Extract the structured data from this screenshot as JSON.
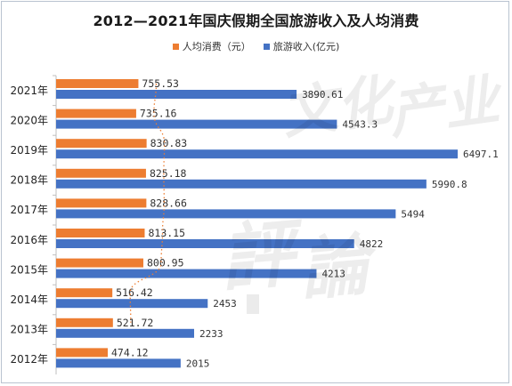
{
  "chart_data": {
    "type": "bar",
    "orientation": "horizontal",
    "title": "2012—2021年国庆假期全国旅游收入及人均消费",
    "categories": [
      "2021年",
      "2020年",
      "2019年",
      "2018年",
      "2017年",
      "2016年",
      "2015年",
      "2014年",
      "2013年",
      "2012年"
    ],
    "series": [
      {
        "name": "人均消费（元）",
        "color": "#ed7d31",
        "values": [
          755.53,
          735.16,
          830.83,
          825.18,
          828.66,
          813.15,
          800.95,
          516.42,
          521.72,
          474.12
        ],
        "labels": [
          "755.53",
          "735.16",
          "830.83",
          "825.18",
          "828.66",
          "813.15",
          "800.95",
          "516.42",
          "521.72",
          "474.12"
        ]
      },
      {
        "name": "旅游收入(亿元)",
        "color": "#4472c4",
        "values": [
          3890.61,
          4543.3,
          6497.1,
          5990.8,
          5494,
          4822,
          4213,
          2453,
          2233,
          2015
        ],
        "labels": [
          "3890.61",
          "4543.3",
          "6497.1",
          "5990.8",
          "5494",
          "4822",
          "4213",
          "2453",
          "2233",
          "2015"
        ]
      }
    ],
    "trendline": {
      "series": "人均消费（元）",
      "style": "dotted",
      "color": "#ed7d31"
    },
    "legend_position": "top",
    "grid": false,
    "watermark": "文化产业评论"
  }
}
